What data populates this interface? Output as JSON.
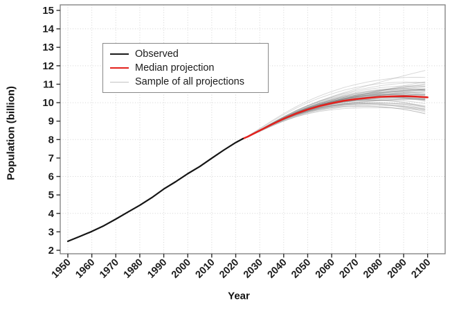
{
  "chart_data": {
    "type": "line",
    "title": "",
    "xlabel": "Year",
    "ylabel": "Population (billion)",
    "xlim": [
      1946.83,
      2107.31
    ],
    "ylim": [
      1.812,
      15.301
    ],
    "xticks": [
      1950,
      1960,
      1970,
      1980,
      1990,
      2000,
      2010,
      2020,
      2030,
      2040,
      2050,
      2060,
      2070,
      2080,
      2090,
      2100
    ],
    "yticks": [
      2,
      3,
      4,
      5,
      6,
      7,
      8,
      9,
      10,
      11,
      12,
      13,
      14,
      15
    ],
    "grid": {
      "style": "dotted",
      "color": "#d2d2d2",
      "x_lines": [
        1950,
        1960,
        1970,
        1980,
        1990,
        2000,
        2010,
        2020,
        2030,
        2040,
        2050,
        2060,
        2070,
        2080,
        2090,
        2100
      ],
      "y_lines": [
        4,
        6,
        8,
        10,
        12,
        14
      ]
    },
    "legend": {
      "position": "upper-left-inside",
      "entries": [
        {
          "label": "Observed",
          "color": "#1a1a1a"
        },
        {
          "label": "Median projection",
          "color": "#e3201c"
        },
        {
          "label": "Sample of all projections",
          "color": "#c2c2c2"
        }
      ]
    },
    "series": [
      {
        "name": "Observed",
        "color": "#151515",
        "width": 2.2,
        "x": [
          1950,
          1955,
          1960,
          1965,
          1970,
          1975,
          1980,
          1985,
          1990,
          1995,
          2000,
          2005,
          2010,
          2015,
          2020,
          2023
        ],
        "y": [
          2.49,
          2.75,
          3.02,
          3.33,
          3.69,
          4.07,
          4.44,
          4.85,
          5.32,
          5.72,
          6.15,
          6.54,
          6.99,
          7.43,
          7.84,
          8.05
        ]
      },
      {
        "name": "Median projection",
        "color": "#e3201c",
        "width": 2.5,
        "x": [
          2023,
          2025,
          2030,
          2035,
          2040,
          2045,
          2050,
          2055,
          2060,
          2065,
          2070,
          2075,
          2080,
          2085,
          2090,
          2095,
          2100
        ],
        "y": [
          8.05,
          8.16,
          8.49,
          8.82,
          9.13,
          9.4,
          9.63,
          9.82,
          9.97,
          10.1,
          10.19,
          10.26,
          10.31,
          10.34,
          10.35,
          10.33,
          10.29
        ]
      }
    ],
    "samples": {
      "name": "Sample of all projections",
      "color": "#808080",
      "opacity": 0.32,
      "width": 0.9,
      "count": 55,
      "start": {
        "x": 2023,
        "y": 8.05
      },
      "end_center": 10.45,
      "end_range": [
        8.7,
        12.5
      ]
    }
  }
}
